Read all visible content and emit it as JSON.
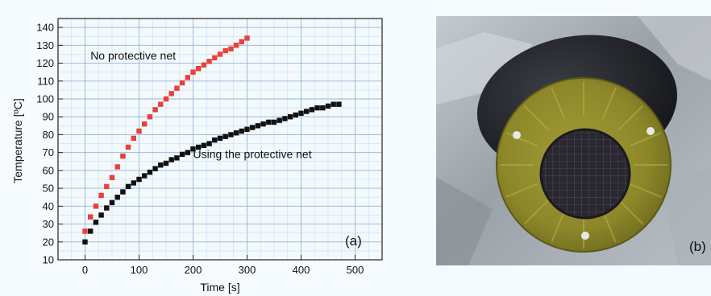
{
  "chart_data": {
    "type": "scatter",
    "xlabel": "Time [s]",
    "ylabel": "Temperature [ºC]",
    "xlim": [
      -50,
      550
    ],
    "ylim": [
      10,
      145
    ],
    "xticks": [
      0,
      100,
      200,
      300,
      400,
      500
    ],
    "yticks": [
      10,
      20,
      30,
      40,
      50,
      60,
      70,
      80,
      90,
      100,
      110,
      120,
      130,
      140
    ],
    "grid": true,
    "series": [
      {
        "color": "#e8423a",
        "marker": "square",
        "x": [
          0,
          10,
          20,
          30,
          40,
          50,
          60,
          70,
          80,
          90,
          100,
          110,
          120,
          130,
          140,
          150,
          160,
          170,
          180,
          190,
          200,
          210,
          220,
          230,
          240,
          250,
          260,
          270,
          280,
          290,
          300
        ],
        "y": [
          26,
          34,
          40,
          46,
          51,
          56,
          62,
          68,
          73,
          78,
          82,
          86,
          90,
          94,
          97,
          100,
          103,
          106,
          109,
          112,
          115,
          117,
          119,
          121,
          123,
          125,
          127,
          128,
          130,
          132,
          134
        ]
      },
      {
        "color": "#111111",
        "marker": "square",
        "x": [
          0,
          10,
          20,
          30,
          40,
          50,
          60,
          70,
          80,
          90,
          100,
          110,
          120,
          130,
          140,
          150,
          160,
          170,
          180,
          190,
          200,
          210,
          220,
          230,
          240,
          250,
          260,
          270,
          280,
          290,
          300,
          310,
          320,
          330,
          340,
          350,
          360,
          370,
          380,
          390,
          400,
          410,
          420,
          430,
          440,
          450,
          460,
          470
        ],
        "y": [
          20,
          26,
          31,
          35,
          39,
          42,
          45,
          48,
          51,
          53,
          55,
          57,
          59,
          61,
          63,
          64,
          66,
          67,
          69,
          70,
          72,
          73,
          74,
          75,
          77,
          78,
          79,
          80,
          81,
          82,
          83,
          84,
          85,
          86,
          87,
          87,
          88,
          89,
          90,
          91,
          92,
          93,
          94,
          95,
          95,
          96,
          97,
          97
        ]
      }
    ],
    "annotations": [
      {
        "text": "No protective net",
        "x": 10,
        "y": 122
      },
      {
        "text": "Using the protective net",
        "x": 200,
        "y": 67
      }
    ],
    "panel_label": "(a)"
  },
  "photo": {
    "panel_label": "(b)",
    "colors": {
      "foil": "#a7adb3",
      "rubber": "#1f2126",
      "ring": "#8f8a2c",
      "aperture": "#2a2730"
    }
  }
}
